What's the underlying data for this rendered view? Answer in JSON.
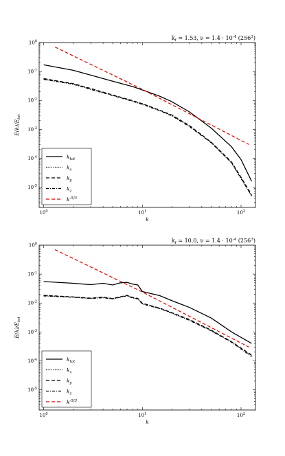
{
  "chart_data": [
    {
      "type": "line",
      "title": "k_f = 1.53, ν = 1.4 · 10^-4 (256^3)",
      "xlabel": "k",
      "ylabel": "E(k)/E_tot",
      "xscale": "log",
      "yscale": "log",
      "xlim": [
        0.9,
        140
      ],
      "ylim": [
        2e-06,
        1
      ],
      "x_tick_labels": [
        "10^0",
        "10^1",
        "10^2"
      ],
      "y_tick_labels": [
        "10^0",
        "10^-1",
        "10^-2",
        "10^-3",
        "10^-4",
        "10^-5"
      ],
      "legend_position": "lower-left",
      "series": [
        {
          "name": "k_tot",
          "color": "#000000",
          "dash": "solid",
          "x": [
            1,
            2,
            3,
            5,
            8,
            10,
            15,
            20,
            30,
            50,
            80,
            100,
            128
          ],
          "y": [
            0.17,
            0.11,
            0.075,
            0.046,
            0.03,
            0.023,
            0.014,
            0.009,
            0.004,
            0.0011,
            0.00025,
            9e-05,
            1.6e-05
          ]
        },
        {
          "name": "k_x",
          "color": "#000000",
          "dash": "dotted",
          "x": [
            1,
            2,
            3,
            5,
            8,
            10,
            15,
            20,
            30,
            50,
            80,
            100,
            128
          ],
          "y": [
            0.055,
            0.037,
            0.025,
            0.015,
            0.0095,
            0.0075,
            0.0045,
            0.003,
            0.0013,
            0.00035,
            7e-05,
            2e-05,
            5e-06
          ]
        },
        {
          "name": "k_y",
          "color": "#000000",
          "dash": "dashed",
          "x": [
            1,
            2,
            3,
            5,
            8,
            10,
            15,
            20,
            30,
            50,
            80,
            100,
            128
          ],
          "y": [
            0.057,
            0.038,
            0.026,
            0.0155,
            0.0098,
            0.0077,
            0.0046,
            0.0031,
            0.00135,
            0.00036,
            7.5e-05,
            2.2e-05,
            5.5e-06
          ]
        },
        {
          "name": "k_z",
          "color": "#000000",
          "dash": "dashdot",
          "x": [
            1,
            2,
            3,
            5,
            8,
            10,
            15,
            20,
            30,
            50,
            80,
            100,
            128
          ],
          "y": [
            0.053,
            0.036,
            0.024,
            0.0148,
            0.0093,
            0.0073,
            0.0044,
            0.0029,
            0.00125,
            0.00034,
            7e-05,
            2e-05,
            5e-06
          ]
        },
        {
          "name": "k^-5/3",
          "color": "#dd0000",
          "dash": "dashed",
          "x": [
            1.3,
            10,
            120
          ],
          "y": [
            0.7,
            0.024,
            0.0003
          ]
        }
      ]
    },
    {
      "type": "line",
      "title": "k_f = 10.0, ν = 1.4 · 10^-4 (256^3)",
      "xlabel": "k",
      "ylabel": "E(k)/E_tot",
      "xscale": "log",
      "yscale": "log",
      "xlim": [
        0.9,
        140
      ],
      "ylim": [
        2e-06,
        1
      ],
      "x_tick_labels": [
        "10^0",
        "10^1",
        "10^2"
      ],
      "y_tick_labels": [
        "10^0",
        "10^-1",
        "10^-2",
        "10^-3",
        "10^-4",
        "10^-5"
      ],
      "legend_position": "lower-left",
      "series": [
        {
          "name": "k_tot",
          "color": "#000000",
          "dash": "solid",
          "x": [
            1,
            2,
            3,
            4,
            5,
            6,
            7,
            8,
            9,
            10,
            15,
            20,
            30,
            50,
            80,
            128
          ],
          "y": [
            0.055,
            0.048,
            0.043,
            0.048,
            0.042,
            0.05,
            0.052,
            0.045,
            0.042,
            0.025,
            0.018,
            0.012,
            0.007,
            0.003,
            0.001,
            0.0004
          ]
        },
        {
          "name": "k_x",
          "color": "#000000",
          "dash": "dotted",
          "x": [
            1,
            2,
            3,
            4,
            5,
            6,
            7,
            8,
            9,
            10,
            15,
            20,
            30,
            50,
            80,
            128
          ],
          "y": [
            0.018,
            0.016,
            0.0145,
            0.0155,
            0.014,
            0.016,
            0.018,
            0.015,
            0.014,
            0.0095,
            0.0065,
            0.0045,
            0.0026,
            0.0011,
            0.00045,
            0.00015
          ]
        },
        {
          "name": "k_y",
          "color": "#000000",
          "dash": "dashed",
          "x": [
            1,
            2,
            3,
            4,
            5,
            6,
            7,
            8,
            9,
            10,
            15,
            20,
            30,
            50,
            80,
            128
          ],
          "y": [
            0.0185,
            0.0163,
            0.0148,
            0.016,
            0.0143,
            0.0165,
            0.0185,
            0.0155,
            0.0145,
            0.0098,
            0.0067,
            0.0046,
            0.0027,
            0.00115,
            0.00046,
            0.00016
          ]
        },
        {
          "name": "k_z",
          "color": "#000000",
          "dash": "dashdot",
          "x": [
            1,
            2,
            3,
            4,
            5,
            6,
            7,
            8,
            9,
            10,
            15,
            20,
            30,
            50,
            80,
            128
          ],
          "y": [
            0.0175,
            0.0158,
            0.0142,
            0.0152,
            0.0138,
            0.0158,
            0.0178,
            0.0148,
            0.0138,
            0.0093,
            0.0064,
            0.0044,
            0.0025,
            0.00108,
            0.00044,
            0.00014
          ]
        },
        {
          "name": "k^-5/3",
          "color": "#dd0000",
          "dash": "dashed",
          "x": [
            1.3,
            10,
            120
          ],
          "y": [
            0.7,
            0.024,
            0.0003
          ]
        }
      ]
    }
  ]
}
